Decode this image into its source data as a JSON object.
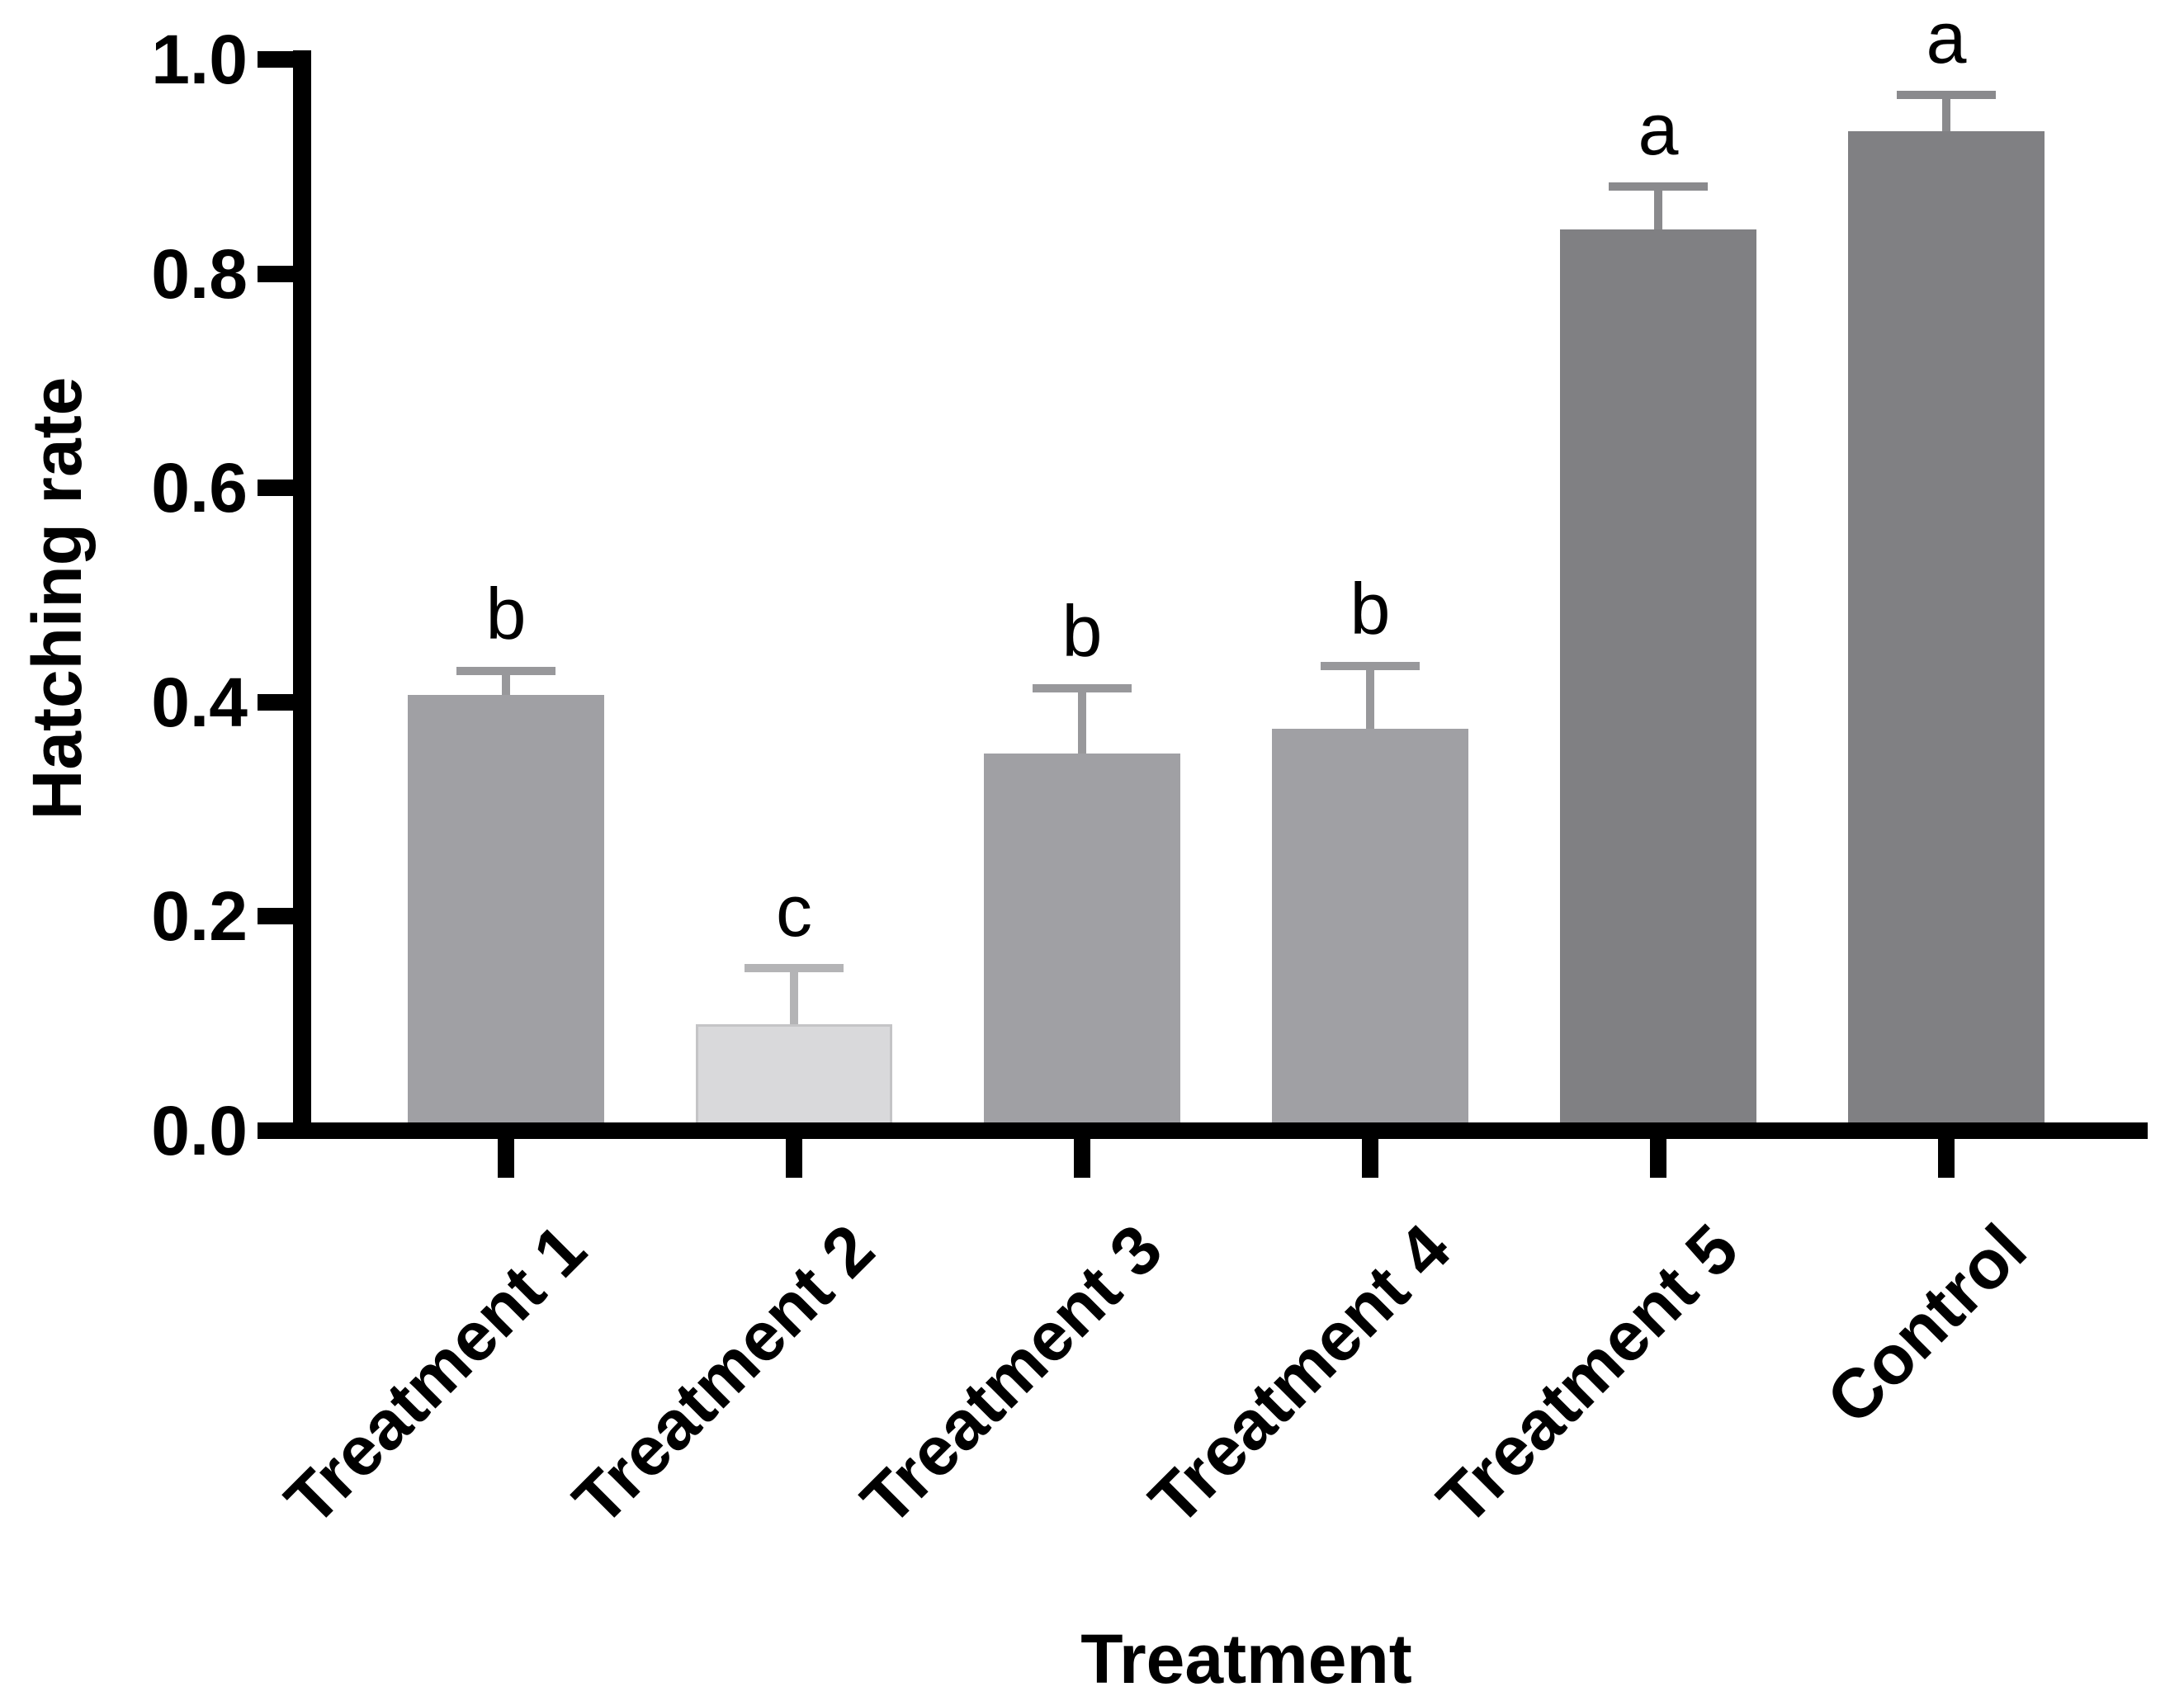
{
  "chart_data": {
    "type": "bar",
    "title": "",
    "xlabel": "Treatment",
    "ylabel": "Hatching rate",
    "categories": [
      "Treatment 1",
      "Treatment 2",
      "Treatment 3",
      "Treatment 4",
      "Treatment 5",
      "Control"
    ],
    "values": [
      0.407,
      0.099,
      0.352,
      0.375,
      0.841,
      0.933
    ],
    "errors": [
      0.022,
      0.053,
      0.061,
      0.059,
      0.04,
      0.034
    ],
    "significance_letters": [
      "b",
      "c",
      "b",
      "b",
      "a",
      "a"
    ],
    "bar_colors": [
      "#a0a0a4",
      "#d9d9db",
      "#a0a0a4",
      "#a0a0a4",
      "#808083",
      "#808083"
    ],
    "bar_border_colors": [
      null,
      "#c4c4c6",
      null,
      null,
      null,
      null
    ],
    "error_bar_colors": [
      "#98989b",
      "#b4b4b6",
      "#98989b",
      "#98989b",
      "#8a8a8d",
      "#8a8a8d"
    ],
    "ylim": [
      0.0,
      1.0
    ],
    "yticks": [
      0.0,
      0.2,
      0.4,
      0.6,
      0.8,
      1.0
    ],
    "ytick_labels": [
      "0.0",
      "0.2",
      "0.4",
      "0.6",
      "0.8",
      "1.0"
    ],
    "xtick_rotation_deg": 45,
    "grid": false,
    "legend_position": "none",
    "axis_color": "#000000",
    "text_color": "#000000",
    "background_color": "#ffffff"
  }
}
